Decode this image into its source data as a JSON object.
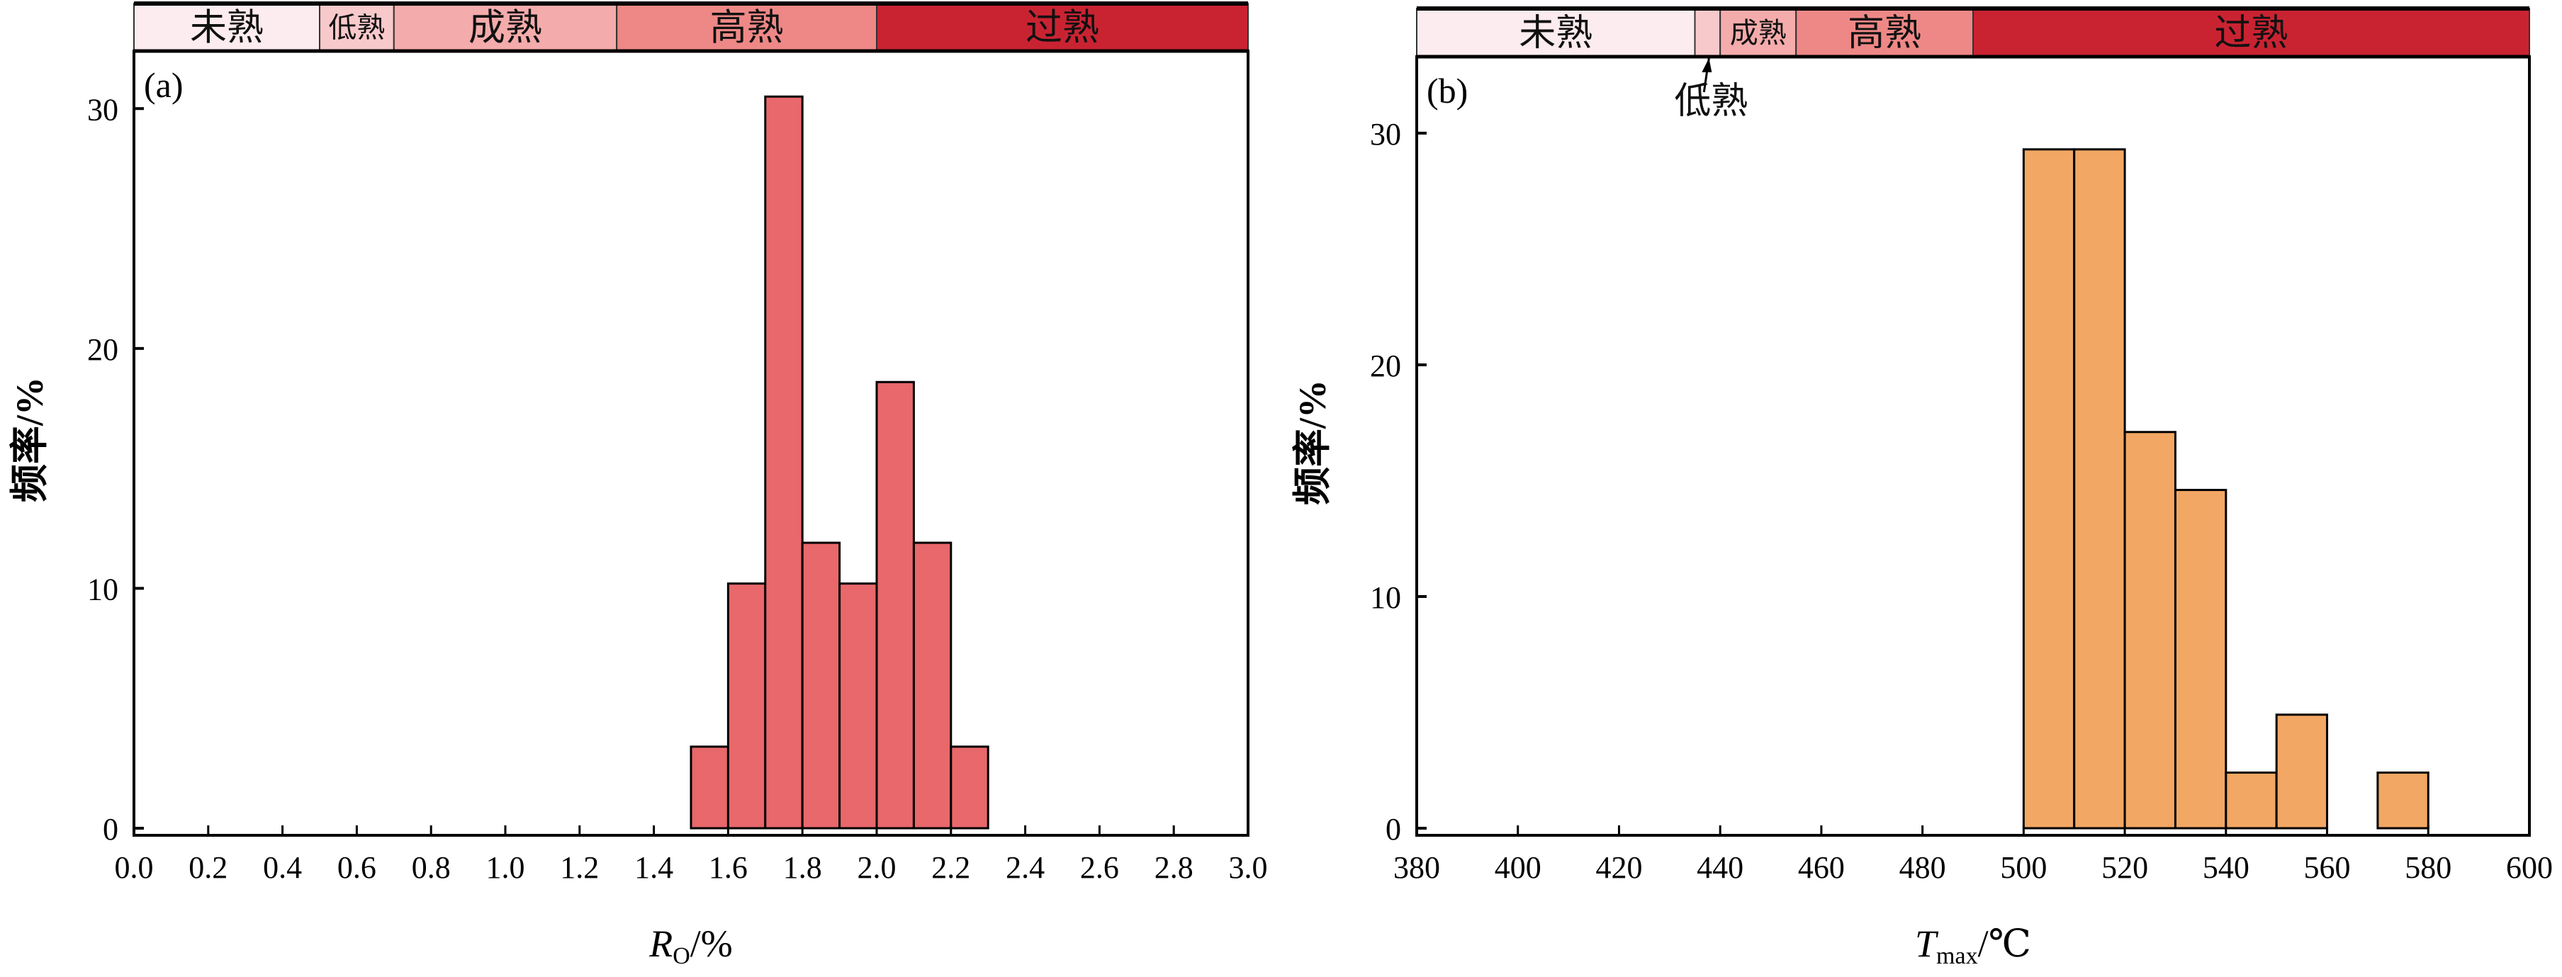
{
  "chart_data": [
    {
      "type": "bar",
      "panel_label": "(a)",
      "xlabel_main": "R",
      "xlabel_sub": "O",
      "xlabel_suffix": "/%",
      "ylabel": "频率/%",
      "xlim": [
        0.0,
        3.0
      ],
      "ylim": [
        0,
        32.4
      ],
      "xticks": [
        "0.0",
        "0.2",
        "0.4",
        "0.6",
        "0.8",
        "1.0",
        "1.2",
        "1.4",
        "1.6",
        "1.8",
        "2.0",
        "2.2",
        "2.4",
        "2.6",
        "2.8",
        "3.0"
      ],
      "yticks": [
        "0",
        "10",
        "20",
        "30"
      ],
      "bar_color": "#e8686b",
      "bins": [
        [
          1.5,
          1.6
        ],
        [
          1.6,
          1.7
        ],
        [
          1.7,
          1.8
        ],
        [
          1.8,
          1.9
        ],
        [
          1.9,
          2.0
        ],
        [
          2.0,
          2.1
        ],
        [
          2.1,
          2.2
        ],
        [
          2.2,
          2.3
        ]
      ],
      "values": [
        3.4,
        10.2,
        30.5,
        11.9,
        10.2,
        18.6,
        11.9,
        3.4
      ],
      "maturity_bands": [
        {
          "label": "未熟",
          "range": [
            0.0,
            0.5
          ],
          "color": "#fdecef"
        },
        {
          "label": "低熟",
          "range": [
            0.5,
            0.7
          ],
          "color": "#f8c9cb"
        },
        {
          "label": "成熟",
          "range": [
            0.7,
            1.3
          ],
          "color": "#f4abab"
        },
        {
          "label": "高熟",
          "range": [
            1.3,
            2.0
          ],
          "color": "#ee8886"
        },
        {
          "label": "过熟",
          "range": [
            2.0,
            3.0
          ],
          "color": "#c92332"
        }
      ]
    },
    {
      "type": "bar",
      "panel_label": "(b)",
      "xlabel_main": "T",
      "xlabel_sub": "max",
      "xlabel_suffix": "/℃",
      "ylabel": "频率/%",
      "xlim": [
        380,
        600
      ],
      "ylim": [
        0,
        33.3
      ],
      "xticks": [
        "380",
        "400",
        "420",
        "440",
        "460",
        "480",
        "500",
        "520",
        "540",
        "560",
        "580",
        "600"
      ],
      "yticks": [
        "0",
        "10",
        "20",
        "30"
      ],
      "bar_color": "#f2a764",
      "bins": [
        [
          500,
          510
        ],
        [
          510,
          520
        ],
        [
          520,
          530
        ],
        [
          530,
          540
        ],
        [
          540,
          550
        ],
        [
          550,
          560
        ],
        [
          560,
          570
        ],
        [
          570,
          580
        ]
      ],
      "values": [
        29.3,
        29.3,
        17.1,
        14.6,
        2.4,
        4.9,
        0,
        2.4
      ],
      "maturity_bands": [
        {
          "label": "未熟",
          "range": [
            380,
            435
          ],
          "color": "#fdecef"
        },
        {
          "label": "低熟",
          "range": [
            435,
            440
          ],
          "color": "#f8c9cb",
          "callout": true
        },
        {
          "label": "成熟",
          "range": [
            440,
            455
          ],
          "color": "#f4abab"
        },
        {
          "label": "高熟",
          "range": [
            455,
            490
          ],
          "color": "#ee8886"
        },
        {
          "label": "过熟",
          "range": [
            490,
            600
          ],
          "color": "#c92332"
        }
      ]
    }
  ]
}
